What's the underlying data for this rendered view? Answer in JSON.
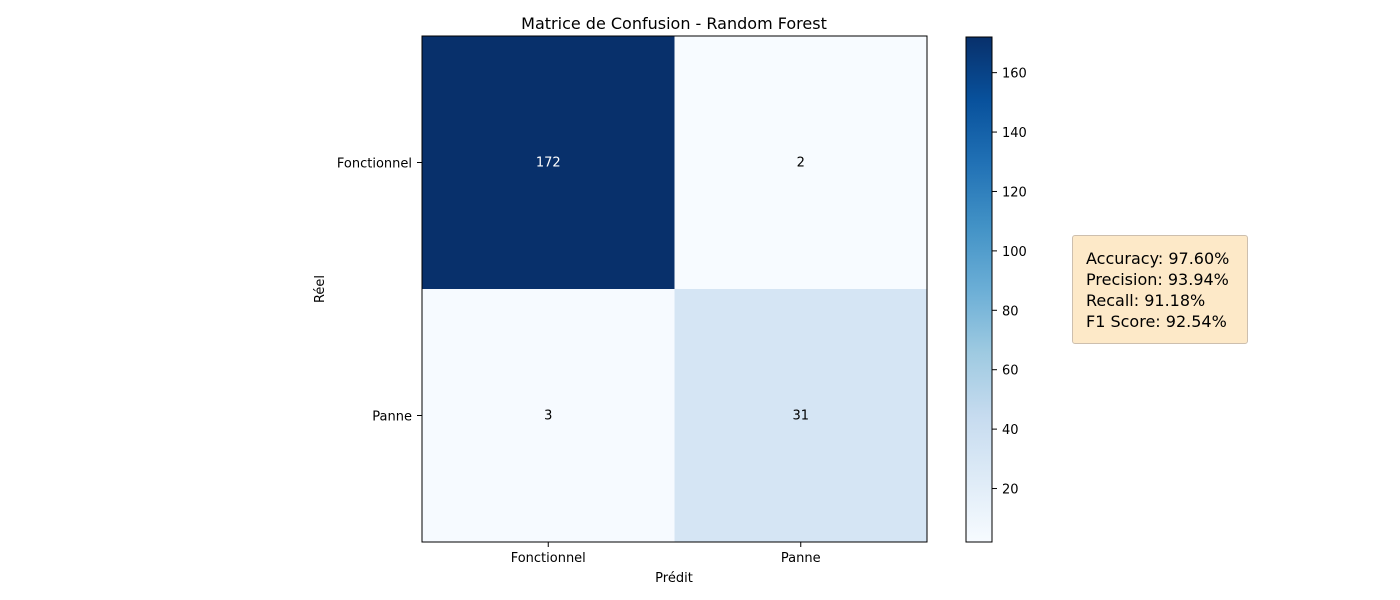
{
  "chart_data": {
    "type": "heatmap",
    "title": "Matrice de Confusion - Random Forest",
    "xlabel": "Prédit",
    "ylabel": "Réel",
    "x_categories": [
      "Fonctionnel",
      "Panne"
    ],
    "y_categories": [
      "Fonctionnel",
      "Panne"
    ],
    "matrix": [
      [
        172,
        2
      ],
      [
        3,
        31
      ]
    ],
    "colorbar": {
      "min": 2,
      "max": 172,
      "ticks": [
        20,
        40,
        60,
        80,
        100,
        120,
        140,
        160
      ],
      "colormap": "Blues"
    }
  },
  "metrics": {
    "accuracy": "Accuracy: 97.60%",
    "precision": "Precision: 93.94%",
    "recall": "Recall: 91.18%",
    "f1": "F1 Score: 92.54%"
  },
  "colors": {
    "box_background": "#fde9c8",
    "box_border": "#cdbfae"
  }
}
